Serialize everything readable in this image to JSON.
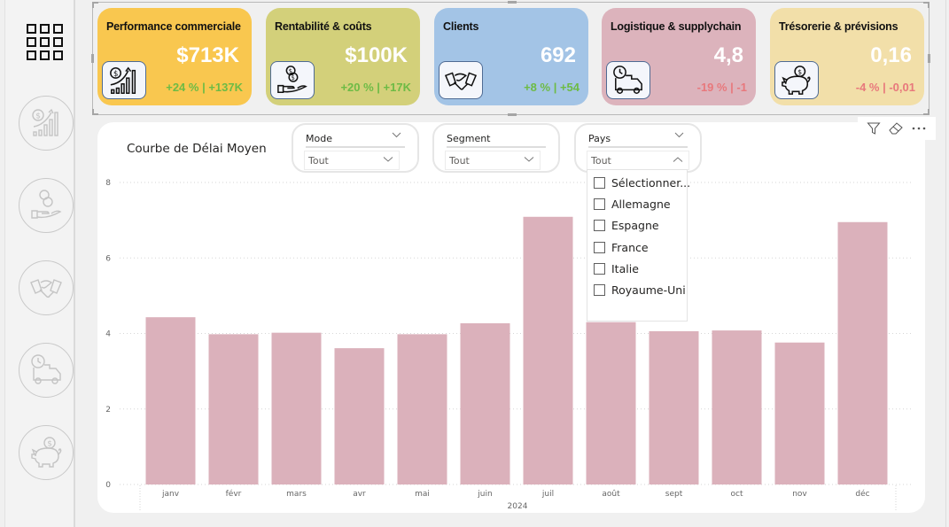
{
  "sidebar": {
    "home_icon": "grid-icon",
    "items": [
      {
        "name": "performance-commerciale",
        "icon": "sales-growth-icon"
      },
      {
        "name": "rentabilite-couts",
        "icon": "money-hand-icon"
      },
      {
        "name": "clients",
        "icon": "handshake-icon"
      },
      {
        "name": "logistique",
        "icon": "delivery-truck-icon"
      },
      {
        "name": "tresorerie",
        "icon": "piggy-bank-icon"
      }
    ]
  },
  "kpis": [
    {
      "title": "Performance commerciale",
      "value": "$713K",
      "delta": "+24 % | +137K",
      "trend": "positive",
      "color": "#f9c74f",
      "icon": "sales-growth-icon"
    },
    {
      "title": "Rentabilité & coûts",
      "value": "$100K",
      "delta": "+20 % | +17K",
      "trend": "positive",
      "color": "#d3d07a",
      "icon": "money-hand-icon"
    },
    {
      "title": "Clients",
      "value": "692",
      "delta": "+8 % | +54",
      "trend": "positive",
      "color": "#a3c4e6",
      "icon": "handshake-icon"
    },
    {
      "title": "Logistique & supplychain",
      "value": "4,8",
      "delta": "-19 % | -1",
      "trend": "negative",
      "color": "#dcb3bc",
      "icon": "delivery-truck-icon"
    },
    {
      "title": "Trésorerie & prévisions",
      "value": "0,16",
      "delta": "-4 % | -0,01",
      "trend": "negative",
      "color": "#f2dfa9",
      "icon": "piggy-bank-icon"
    }
  ],
  "slicers": [
    {
      "label": "Mode",
      "value": "Tout",
      "expanded": false
    },
    {
      "label": "Segment",
      "value": "Tout",
      "expanded": false
    },
    {
      "label": "Pays",
      "value": "Tout",
      "expanded": true
    }
  ],
  "pays_dropdown": {
    "options": [
      "Sélectionner...",
      "Allemagne",
      "Espagne",
      "France",
      "Italie",
      "Royaume-Uni"
    ]
  },
  "visual_toolbar": {
    "filter_icon": "filter-icon",
    "eraser_icon": "eraser-icon",
    "more_icon": "more-options-icon"
  },
  "colors": {
    "bar": "#dbb1bb",
    "positive": "#6dbb45",
    "negative": "#e8787c"
  },
  "chart_data": {
    "type": "bar",
    "title": "Courbe de Délai Moyen",
    "categories": [
      "janv",
      "févr",
      "mars",
      "avr",
      "mai",
      "juin",
      "juil",
      "août",
      "sept",
      "oct",
      "nov",
      "déc"
    ],
    "values": [
      4.43,
      3.98,
      4.02,
      3.61,
      3.98,
      4.27,
      7.09,
      4.3,
      4.06,
      4.08,
      3.76,
      6.95
    ],
    "xlabel": "2024",
    "ylabel": "",
    "ylim": [
      0,
      8
    ],
    "yticks": [
      "0",
      "2",
      "4",
      "6",
      "8"
    ],
    "grid": true,
    "legend": "none"
  }
}
